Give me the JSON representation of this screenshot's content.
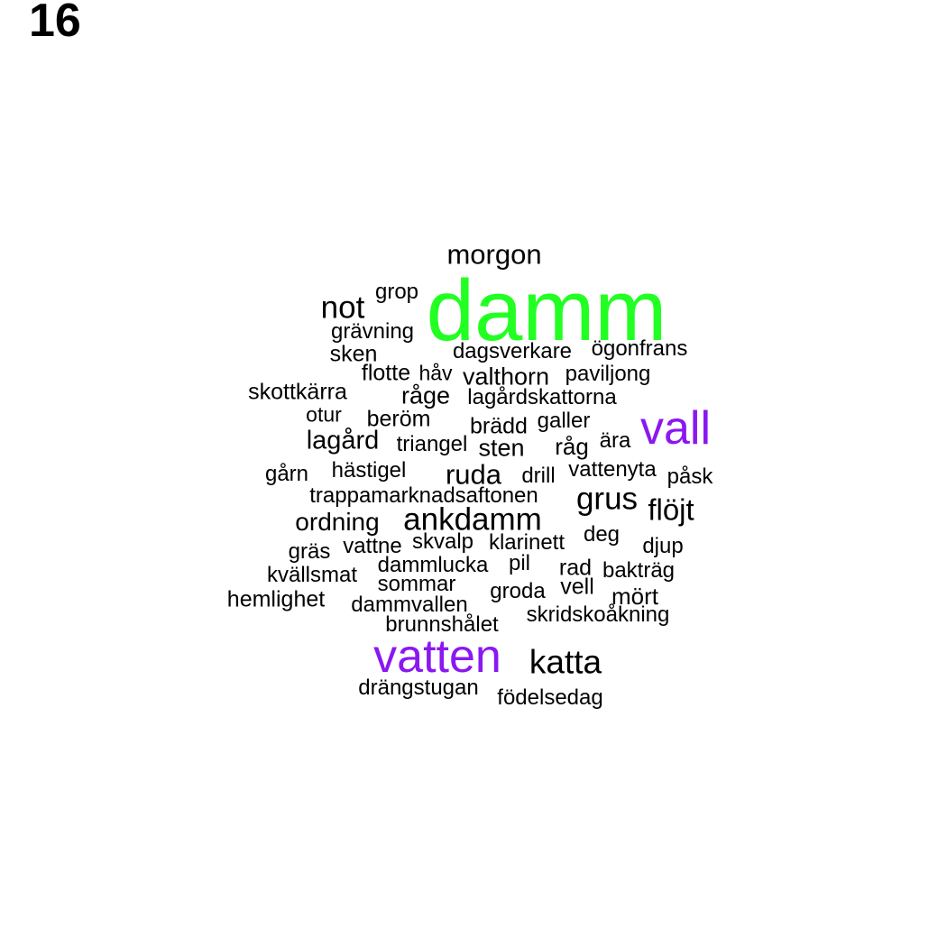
{
  "panel_label": "16",
  "colors": {
    "default": "#000000",
    "green": "#22ff22",
    "purple": "#8a18f0"
  },
  "words": [
    {
      "text": "damm",
      "color": "green"
    },
    {
      "text": "vall",
      "color": "purple"
    },
    {
      "text": "vatten",
      "color": "purple"
    },
    {
      "text": "morgon"
    },
    {
      "text": "not"
    },
    {
      "text": "grop"
    },
    {
      "text": "grävning"
    },
    {
      "text": "sken"
    },
    {
      "text": "dagsverkare"
    },
    {
      "text": "ögonfrans"
    },
    {
      "text": "flotte"
    },
    {
      "text": "håv"
    },
    {
      "text": "valthorn"
    },
    {
      "text": "paviljong"
    },
    {
      "text": "skottkärra"
    },
    {
      "text": "råge"
    },
    {
      "text": "lagårdskattorna"
    },
    {
      "text": "otur"
    },
    {
      "text": "beröm"
    },
    {
      "text": "brädd"
    },
    {
      "text": "galler"
    },
    {
      "text": "lagård"
    },
    {
      "text": "triangel"
    },
    {
      "text": "sten"
    },
    {
      "text": "råg"
    },
    {
      "text": "ära"
    },
    {
      "text": "gårn"
    },
    {
      "text": "hästigel"
    },
    {
      "text": "ruda"
    },
    {
      "text": "drill"
    },
    {
      "text": "vattenyta"
    },
    {
      "text": "påsk"
    },
    {
      "text": "trappamarknadsaftonen"
    },
    {
      "text": "grus"
    },
    {
      "text": "flöjt"
    },
    {
      "text": "ordning"
    },
    {
      "text": "ankdamm"
    },
    {
      "text": "deg"
    },
    {
      "text": "gräs"
    },
    {
      "text": "vattne"
    },
    {
      "text": "skvalp"
    },
    {
      "text": "klarinett"
    },
    {
      "text": "djup"
    },
    {
      "text": "kvällsmat"
    },
    {
      "text": "dammlucka"
    },
    {
      "text": "pil"
    },
    {
      "text": "rad"
    },
    {
      "text": "bakträg"
    },
    {
      "text": "sommar"
    },
    {
      "text": "vell"
    },
    {
      "text": "hemlighet"
    },
    {
      "text": "groda"
    },
    {
      "text": "mört"
    },
    {
      "text": "dammvallen"
    },
    {
      "text": "skridskoåkning"
    },
    {
      "text": "brunnshålet"
    },
    {
      "text": "katta"
    },
    {
      "text": "drängstugan"
    },
    {
      "text": "födelsedag"
    }
  ]
}
